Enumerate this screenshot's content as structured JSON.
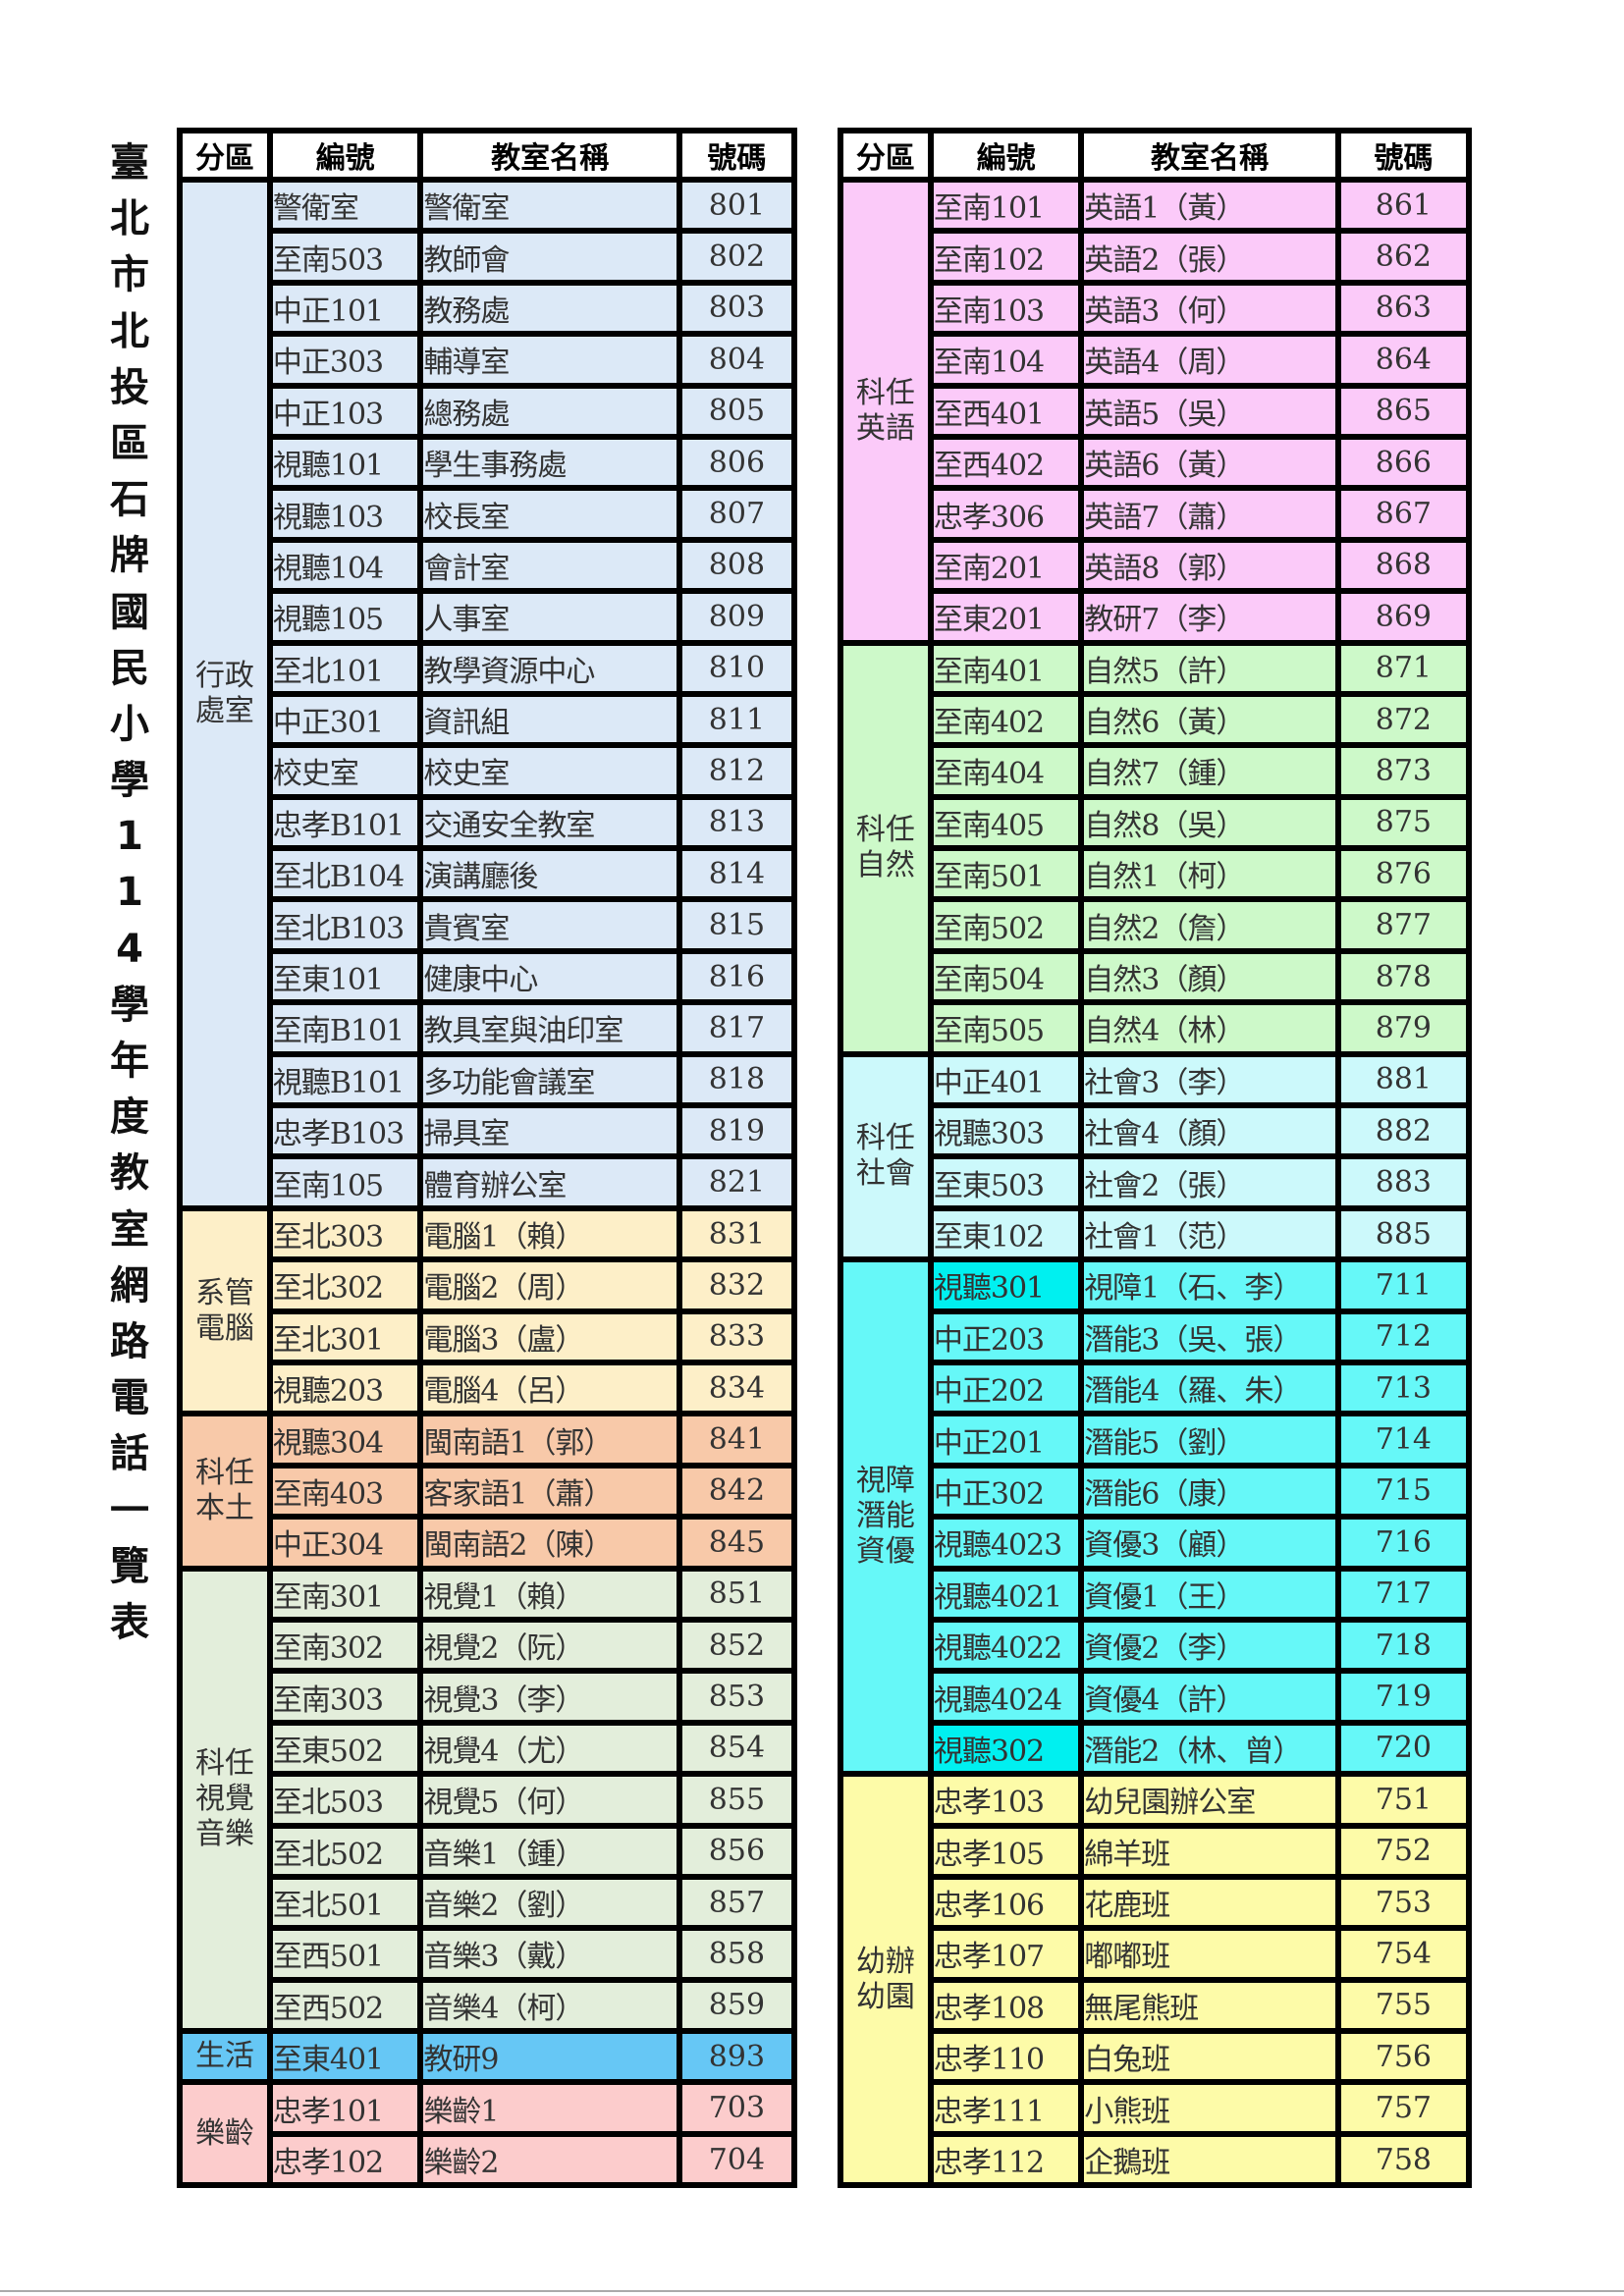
{
  "title": "臺北市北投區石牌國民小學114學年度教室網路電話一覽表",
  "headers": [
    "分區",
    "編號",
    "教室名稱",
    "號碼"
  ],
  "left_table": {
    "groups": [
      {
        "label": [
          "行政",
          "處室"
        ],
        "color": "#dce9f7",
        "rows": [
          [
            "警衛室",
            "警衛室",
            "801"
          ],
          [
            "至南503",
            "教師會",
            "802"
          ],
          [
            "中正101",
            "教務處",
            "803"
          ],
          [
            "中正303",
            "輔導室",
            "804"
          ],
          [
            "中正103",
            "總務處",
            "805"
          ],
          [
            "視聽101",
            "學生事務處",
            "806"
          ],
          [
            "視聽103",
            "校長室",
            "807"
          ],
          [
            "視聽104",
            "會計室",
            "808"
          ],
          [
            "視聽105",
            "人事室",
            "809"
          ],
          [
            "至北101",
            "教學資源中心",
            "810"
          ],
          [
            "中正301",
            "資訊組",
            "811"
          ],
          [
            "校史室",
            "校史室",
            "812"
          ],
          [
            "忠孝B101",
            "交通安全教室",
            "813"
          ],
          [
            "至北B104",
            "演講廳後",
            "814"
          ],
          [
            "至北B103",
            "貴賓室",
            "815"
          ],
          [
            "至東101",
            "健康中心",
            "816"
          ],
          [
            "至南B101",
            "教具室與油印室",
            "817"
          ],
          [
            "視聽B101",
            "多功能會議室",
            "818"
          ],
          [
            "忠孝B103",
            "掃具室",
            "819"
          ],
          [
            "至南105",
            "體育辦公室",
            "821"
          ]
        ]
      },
      {
        "label": [
          "系管",
          "電腦"
        ],
        "color": "#fdefc8",
        "rows": [
          [
            "至北303",
            "電腦1（賴）",
            "831"
          ],
          [
            "至北302",
            "電腦2（周）",
            "832"
          ],
          [
            "至北301",
            "電腦3（盧）",
            "833"
          ],
          [
            "視聽203",
            "電腦4（呂）",
            "834"
          ]
        ]
      },
      {
        "label": [
          "科任",
          "本土"
        ],
        "color": "#f8c9a9",
        "rows": [
          [
            "視聽304",
            "閩南語1（郭）",
            "841"
          ],
          [
            "至南403",
            "客家語1（蕭）",
            "842"
          ],
          [
            "中正304",
            "閩南語2（陳）",
            "845"
          ]
        ]
      },
      {
        "label": [
          "科任",
          "視覺",
          "音樂"
        ],
        "color": "#e3eedb",
        "rows": [
          [
            "至南301",
            "視覺1（賴）",
            "851"
          ],
          [
            "至南302",
            "視覺2（阮）",
            "852"
          ],
          [
            "至南303",
            "視覺3（李）",
            "853"
          ],
          [
            "至東502",
            "視覺4（尤）",
            "854"
          ],
          [
            "至北503",
            "視覺5（何）",
            "855"
          ],
          [
            "至北502",
            "音樂1（鍾）",
            "856"
          ],
          [
            "至北501",
            "音樂2（劉）",
            "857"
          ],
          [
            "至西501",
            "音樂3（戴）",
            "858"
          ],
          [
            "至西502",
            "音樂4（柯）",
            "859"
          ]
        ]
      },
      {
        "label": [
          "生活"
        ],
        "color": "#66c7f5",
        "rows": [
          [
            "至東401",
            "教研9",
            "893"
          ]
        ]
      },
      {
        "label": [
          "樂齡"
        ],
        "color": "#fccccc",
        "rows": [
          [
            "忠孝101",
            "樂齡1",
            "703"
          ],
          [
            "忠孝102",
            "樂齡2",
            "704"
          ]
        ]
      }
    ]
  },
  "right_table": {
    "groups": [
      {
        "label": [
          "科任",
          "英語"
        ],
        "color": "#fbcaf9",
        "rows": [
          [
            "至南101",
            "英語1（黃）",
            "861"
          ],
          [
            "至南102",
            "英語2（張）",
            "862"
          ],
          [
            "至南103",
            "英語3（何）",
            "863"
          ],
          [
            "至南104",
            "英語4（周）",
            "864"
          ],
          [
            "至西401",
            "英語5（吳）",
            "865"
          ],
          [
            "至西402",
            "英語6（黃）",
            "866"
          ],
          [
            "忠孝306",
            "英語7（蕭）",
            "867"
          ],
          [
            "至南201",
            "英語8（郭）",
            "868"
          ],
          [
            "至東201",
            "教研7（李）",
            "869"
          ]
        ]
      },
      {
        "label": [
          "科任",
          "自然"
        ],
        "color": "#cdf9c9",
        "rows": [
          [
            "至南401",
            "自然5（許）",
            "871"
          ],
          [
            "至南402",
            "自然6（黃）",
            "872"
          ],
          [
            "至南404",
            "自然7（鍾）",
            "873"
          ],
          [
            "至南405",
            "自然8（吳）",
            "875"
          ],
          [
            "至南501",
            "自然1（柯）",
            "876"
          ],
          [
            "至南502",
            "自然2（詹）",
            "877"
          ],
          [
            "至南504",
            "自然3（顏）",
            "878"
          ],
          [
            "至南505",
            "自然4（林）",
            "879"
          ]
        ]
      },
      {
        "label": [
          "科任",
          "社會"
        ],
        "color": "#ccf9fb",
        "rows": [
          [
            "中正401",
            "社會3（李）",
            "881"
          ],
          [
            "視聽303",
            "社會4（顏）",
            "882"
          ],
          [
            "至東503",
            "社會2（張）",
            "883"
          ],
          [
            "至東102",
            "社會1（范）",
            "885"
          ]
        ]
      },
      {
        "label": [
          "視障",
          "潛能",
          "資優"
        ],
        "color": "#66f8f8",
        "highlight_color": "#00f0f0",
        "highlight_codes": [
          "視聽301",
          "視聽302"
        ],
        "rows": [
          [
            "視聽301",
            "視障1（石、李）",
            "711"
          ],
          [
            "中正203",
            "潛能3（吳、張）",
            "712"
          ],
          [
            "中正202",
            "潛能4（羅、朱）",
            "713"
          ],
          [
            "中正201",
            "潛能5（劉）",
            "714"
          ],
          [
            "中正302",
            "潛能6（康）",
            "715"
          ],
          [
            "視聽4023",
            "資優3（顧）",
            "716"
          ],
          [
            "視聽4021",
            "資優1（王）",
            "717"
          ],
          [
            "視聽4022",
            "資優2（李）",
            "718"
          ],
          [
            "視聽4024",
            "資優4（許）",
            "719"
          ],
          [
            "視聽302",
            "潛能2（林、曾）",
            "720"
          ]
        ]
      },
      {
        "label": [
          "幼辦",
          "幼園"
        ],
        "color": "#fdfba8",
        "rows": [
          [
            "忠孝103",
            "幼兒園辦公室",
            "751"
          ],
          [
            "忠孝105",
            "綿羊班",
            "752"
          ],
          [
            "忠孝106",
            "花鹿班",
            "753"
          ],
          [
            "忠孝107",
            "嘟嘟班",
            "754"
          ],
          [
            "忠孝108",
            "無尾熊班",
            "755"
          ],
          [
            "忠孝110",
            "白兔班",
            "756"
          ],
          [
            "忠孝111",
            "小熊班",
            "757"
          ],
          [
            "忠孝112",
            "企鵝班",
            "758"
          ]
        ]
      }
    ]
  }
}
